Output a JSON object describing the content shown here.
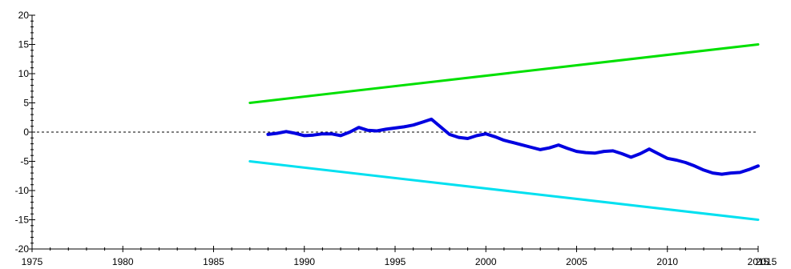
{
  "chart_data": {
    "type": "line",
    "xlim": [
      1975,
      2015
    ],
    "ylim": [
      -20,
      20
    ],
    "x_ticks": [
      1975,
      1980,
      1985,
      1990,
      1995,
      2000,
      2005,
      2010,
      2015
    ],
    "x_tick_labels": [
      "1975",
      "1980",
      "1985",
      "1990",
      "1995",
      "2000",
      "2005",
      "2010",
      "2015"
    ],
    "x_extra_label": "2015",
    "y_ticks": [
      -20,
      -15,
      -10,
      -5,
      0,
      5,
      10,
      15,
      20
    ],
    "y_tick_labels": [
      "-20",
      "-15",
      "-10",
      "-5",
      "0",
      "5",
      "10",
      "15",
      "20"
    ],
    "grid": false,
    "zero_line": {
      "y": 0,
      "style": "dashed",
      "color": "#000000"
    },
    "series": [
      {
        "color": "#00e000",
        "x": [
          1987,
          2015
        ],
        "y": [
          5,
          15
        ]
      },
      {
        "color": "#0000e0",
        "x": [
          1988,
          1988.5,
          1989,
          1989.5,
          1990,
          1990.5,
          1991,
          1991.5,
          1992,
          1992.5,
          1993,
          1993.5,
          1994,
          1994.5,
          1995,
          1995.5,
          1996,
          1996.5,
          1997,
          1997.5,
          1998,
          1998.5,
          1999,
          1999.5,
          2000,
          2000.5,
          2001,
          2001.5,
          2002,
          2002.5,
          2003,
          2003.5,
          2004,
          2004.5,
          2005,
          2005.5,
          2006,
          2006.5,
          2007,
          2007.5,
          2008,
          2008.5,
          2009,
          2009.5,
          2010,
          2010.5,
          2011,
          2011.5,
          2012,
          2012.5,
          2013,
          2013.5,
          2014,
          2014.5,
          2015
        ],
        "y": [
          -0.4,
          -0.2,
          0.1,
          -0.2,
          -0.6,
          -0.5,
          -0.3,
          -0.3,
          -0.6,
          0.0,
          0.8,
          0.3,
          0.2,
          0.5,
          0.7,
          0.9,
          1.2,
          1.7,
          2.2,
          0.9,
          -0.4,
          -0.9,
          -1.1,
          -0.6,
          -0.3,
          -0.8,
          -1.4,
          -1.8,
          -2.2,
          -2.6,
          -3.0,
          -2.7,
          -2.2,
          -2.8,
          -3.3,
          -3.5,
          -3.6,
          -3.3,
          -3.2,
          -3.7,
          -4.3,
          -3.7,
          -2.9,
          -3.7,
          -4.5,
          -4.8,
          -5.2,
          -5.8,
          -6.5,
          -7.0,
          -7.2,
          -7.0,
          -6.9,
          -6.4,
          -5.8
        ]
      },
      {
        "color": "#00e0f0",
        "x": [
          1987,
          2015
        ],
        "y": [
          -5,
          -15
        ]
      }
    ]
  }
}
